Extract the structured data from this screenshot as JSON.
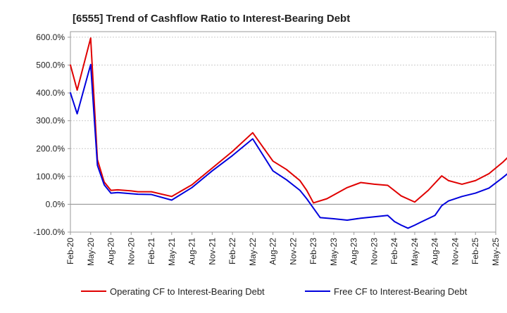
{
  "chart_data": {
    "type": "line",
    "title": "[6555]  Trend of Cashflow Ratio to Interest-Bearing Debt",
    "y_ticks": [
      "600.0%",
      "500.0%",
      "400.0%",
      "300.0%",
      "200.0%",
      "100.0%",
      "0.0%",
      "-100.0%"
    ],
    "y_tick_values": [
      600,
      500,
      400,
      300,
      200,
      100,
      0,
      -100
    ],
    "ylim": [
      -100,
      620
    ],
    "x_ticks": [
      "Feb-20",
      "May-20",
      "Aug-20",
      "Nov-20",
      "Feb-21",
      "May-21",
      "Aug-21",
      "Nov-21",
      "Feb-22",
      "May-22",
      "Aug-22",
      "Nov-22",
      "Feb-23",
      "May-23",
      "Aug-23",
      "Nov-23",
      "Feb-24",
      "May-24",
      "Aug-24",
      "Nov-24",
      "Feb-25",
      "May-25"
    ],
    "months_per_tick": 3,
    "grid": "horizontal",
    "zero_line_color": "#888888",
    "series": [
      {
        "name": "Operating CF to Interest-Bearing Debt",
        "color": "#e00000",
        "points": [
          [
            0,
            500
          ],
          [
            1,
            410
          ],
          [
            3,
            597
          ],
          [
            4,
            160
          ],
          [
            5,
            80
          ],
          [
            6,
            50
          ],
          [
            7,
            52
          ],
          [
            9,
            48
          ],
          [
            10,
            45
          ],
          [
            12,
            45
          ],
          [
            15,
            28
          ],
          [
            18,
            70
          ],
          [
            21,
            130
          ],
          [
            24,
            190
          ],
          [
            27,
            257
          ],
          [
            30,
            155
          ],
          [
            32,
            125
          ],
          [
            34,
            85
          ],
          [
            35,
            50
          ],
          [
            36,
            5
          ],
          [
            38,
            20
          ],
          [
            41,
            60
          ],
          [
            43,
            78
          ],
          [
            45,
            72
          ],
          [
            47,
            68
          ],
          [
            49,
            30
          ],
          [
            51,
            8
          ],
          [
            53,
            50
          ],
          [
            55,
            102
          ],
          [
            56,
            85
          ],
          [
            58,
            72
          ],
          [
            60,
            85
          ],
          [
            62,
            110
          ],
          [
            64,
            150
          ],
          [
            66,
            197
          ]
        ]
      },
      {
        "name": "Free CF to Interest-Bearing Debt",
        "color": "#0000dd",
        "points": [
          [
            0,
            400
          ],
          [
            1,
            325
          ],
          [
            3,
            502
          ],
          [
            4,
            140
          ],
          [
            5,
            70
          ],
          [
            6,
            40
          ],
          [
            7,
            42
          ],
          [
            9,
            38
          ],
          [
            10,
            36
          ],
          [
            12,
            35
          ],
          [
            15,
            15
          ],
          [
            18,
            60
          ],
          [
            21,
            120
          ],
          [
            24,
            175
          ],
          [
            27,
            235
          ],
          [
            30,
            120
          ],
          [
            32,
            88
          ],
          [
            34,
            50
          ],
          [
            35,
            20
          ],
          [
            37,
            -48
          ],
          [
            39,
            -52
          ],
          [
            41,
            -57
          ],
          [
            43,
            -50
          ],
          [
            45,
            -45
          ],
          [
            47,
            -40
          ],
          [
            48,
            -62
          ],
          [
            49,
            -75
          ],
          [
            50,
            -86
          ],
          [
            51,
            -75
          ],
          [
            52,
            -63
          ],
          [
            54,
            -40
          ],
          [
            55,
            -5
          ],
          [
            56,
            12
          ],
          [
            58,
            28
          ],
          [
            60,
            40
          ],
          [
            62,
            58
          ],
          [
            64,
            95
          ],
          [
            66,
            135
          ]
        ]
      }
    ],
    "legend_position": "bottom"
  }
}
